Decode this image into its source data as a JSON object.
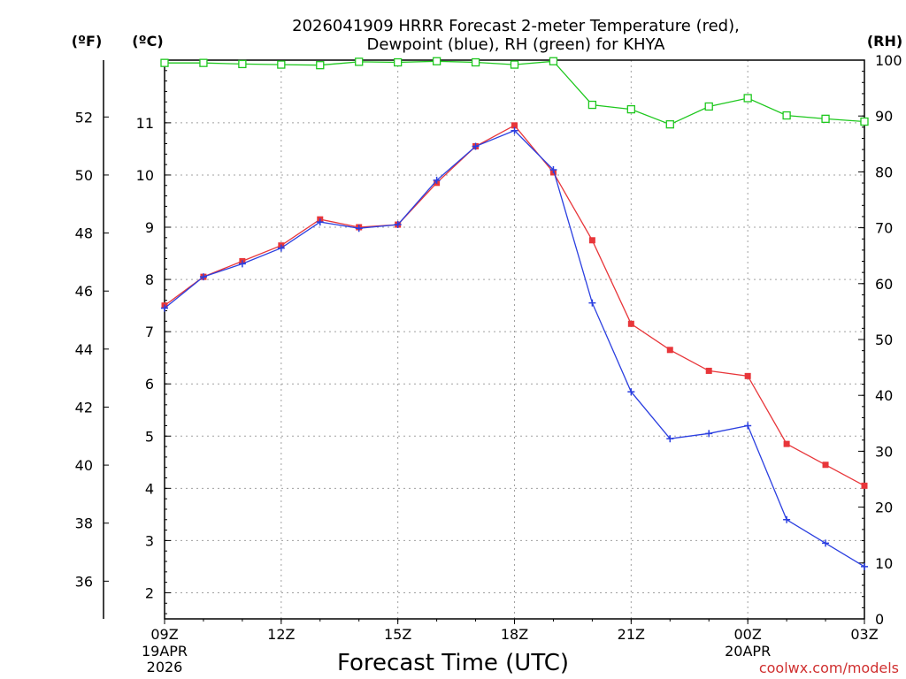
{
  "colors": {
    "temperature": "#e8363a",
    "dewpoint": "#2b3fe0",
    "rh": "#1ec81e",
    "grid": "#a0a0a0",
    "credit": "#d03030"
  },
  "chart_data": {
    "type": "line",
    "title_line1": "2026041909 HRRR Forecast 2-meter Temperature (red),",
    "title_line2": "Dewpoint (blue), RH (green) for KHYA",
    "xlabel": "Forecast Time (UTC)",
    "left_outer_axis_label": "(ºF)",
    "left_inner_axis_label": "(ºC)",
    "right_axis_label": "(RH)",
    "credit": "coolwx.com/models",
    "x_hours": [
      9,
      10,
      11,
      12,
      13,
      14,
      15,
      16,
      17,
      18,
      19,
      20,
      21,
      22,
      23,
      24,
      25,
      26,
      27
    ],
    "x_range": [
      9,
      27
    ],
    "x_ticks": [
      {
        "hour": 9,
        "label": "09Z",
        "sub1": "19APR",
        "sub2": "2026"
      },
      {
        "hour": 12,
        "label": "12Z",
        "sub1": "",
        "sub2": ""
      },
      {
        "hour": 15,
        "label": "15Z",
        "sub1": "",
        "sub2": ""
      },
      {
        "hour": 18,
        "label": "18Z",
        "sub1": "",
        "sub2": ""
      },
      {
        "hour": 21,
        "label": "21Z",
        "sub1": "",
        "sub2": ""
      },
      {
        "hour": 24,
        "label": "00Z",
        "sub1": "20APR",
        "sub2": ""
      },
      {
        "hour": 27,
        "label": "03Z",
        "sub1": "",
        "sub2": ""
      }
    ],
    "celsius_range": [
      1.5,
      12.2
    ],
    "celsius_ticks": [
      "2",
      "3",
      "4",
      "5",
      "6",
      "7",
      "8",
      "9",
      "10",
      "11"
    ],
    "fahrenheit_ticks": [
      "36",
      "38",
      "40",
      "42",
      "44",
      "46",
      "48",
      "50",
      "52"
    ],
    "rh_range": [
      0,
      100
    ],
    "rh_ticks": [
      "0",
      "10",
      "20",
      "30",
      "40",
      "50",
      "60",
      "70",
      "80",
      "90",
      "100"
    ],
    "series": [
      {
        "name": "Temperature",
        "axis": "celsius",
        "values": [
          7.5,
          8.05,
          8.35,
          8.65,
          9.15,
          9.0,
          9.05,
          9.85,
          10.55,
          10.95,
          10.05,
          8.75,
          7.15,
          6.65,
          6.25,
          6.15,
          4.85,
          4.45,
          4.05
        ]
      },
      {
        "name": "Dewpoint",
        "axis": "celsius",
        "values": [
          7.45,
          8.05,
          8.3,
          8.6,
          9.1,
          8.98,
          9.05,
          9.9,
          10.55,
          10.85,
          10.1,
          7.55,
          5.85,
          4.95,
          5.05,
          5.2,
          3.4,
          2.95,
          2.5
        ]
      },
      {
        "name": "RH",
        "axis": "rh",
        "values": [
          99.5,
          99.5,
          99.3,
          99.2,
          99.1,
          99.7,
          99.6,
          99.8,
          99.6,
          99.2,
          99.8,
          92.0,
          91.2,
          88.5,
          91.7,
          93.2,
          90.1,
          89.5,
          89.0
        ]
      }
    ]
  }
}
